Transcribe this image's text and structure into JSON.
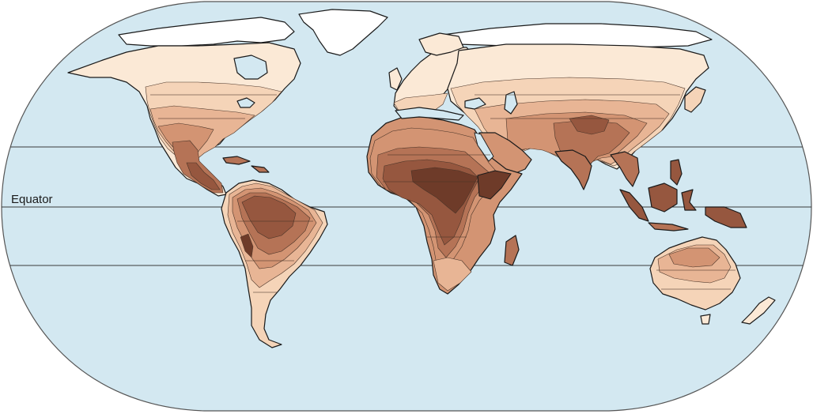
{
  "map": {
    "equator_label": "Equator",
    "projection": "robinson",
    "colors": {
      "ocean": "#d3e8f1",
      "outline": "#1a1a1a",
      "ice": "#ffffff",
      "band_1_lightest": "#fbe9d6",
      "band_2": "#f5d4b8",
      "band_3": "#e8b595",
      "band_4": "#d39473",
      "band_5": "#b57356",
      "band_6": "#96573f",
      "band_7_darkest": "#6e3b29"
    }
  }
}
